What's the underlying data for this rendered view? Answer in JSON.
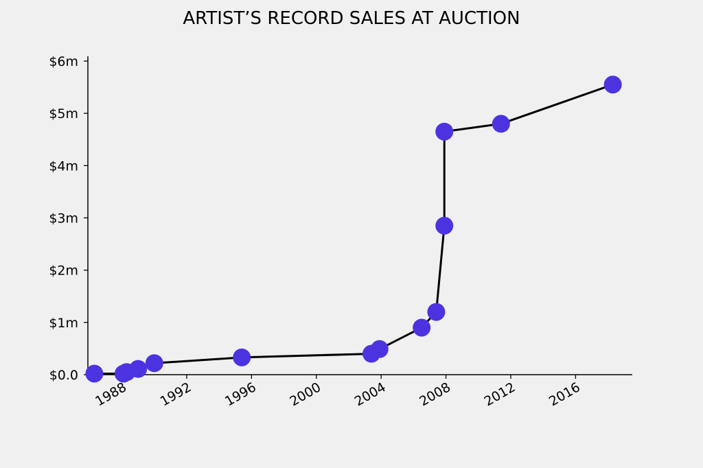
{
  "chart_data": {
    "type": "line",
    "title": "ARTIST’S RECORD SALES AT AUCTION",
    "xlabel": "",
    "ylabel": "",
    "xlim": [
      1985.9,
      2019.5
    ],
    "ylim": [
      0,
      6000000
    ],
    "x_ticks": [
      1988,
      1992,
      1996,
      2000,
      2004,
      2008,
      2012,
      2016
    ],
    "x_tick_labels": [
      "1988",
      "1992",
      "1996",
      "2000",
      "2004",
      "2008",
      "2012",
      "2016"
    ],
    "y_ticks": [
      0,
      1000000,
      2000000,
      3000000,
      4000000,
      5000000,
      6000000
    ],
    "y_tick_labels": [
      "$0.0",
      "$1m",
      "$2m",
      "$3m",
      "$4m",
      "$5m",
      "$6m"
    ],
    "grid": false,
    "legend": "none",
    "line_color": "#000000",
    "marker_color": "#4b34e0",
    "series": [
      {
        "x": [
          1986.3,
          1988.1,
          1988.3,
          1989.0,
          1990.0,
          1995.4,
          2003.4,
          2003.9,
          2006.5,
          2007.4,
          2007.9,
          2007.9,
          2011.4,
          2018.3
        ],
        "y": [
          20000,
          20000,
          50000,
          110000,
          220000,
          330000,
          400000,
          490000,
          900000,
          1200000,
          2850000,
          4650000,
          4800000,
          5550000
        ]
      }
    ]
  }
}
